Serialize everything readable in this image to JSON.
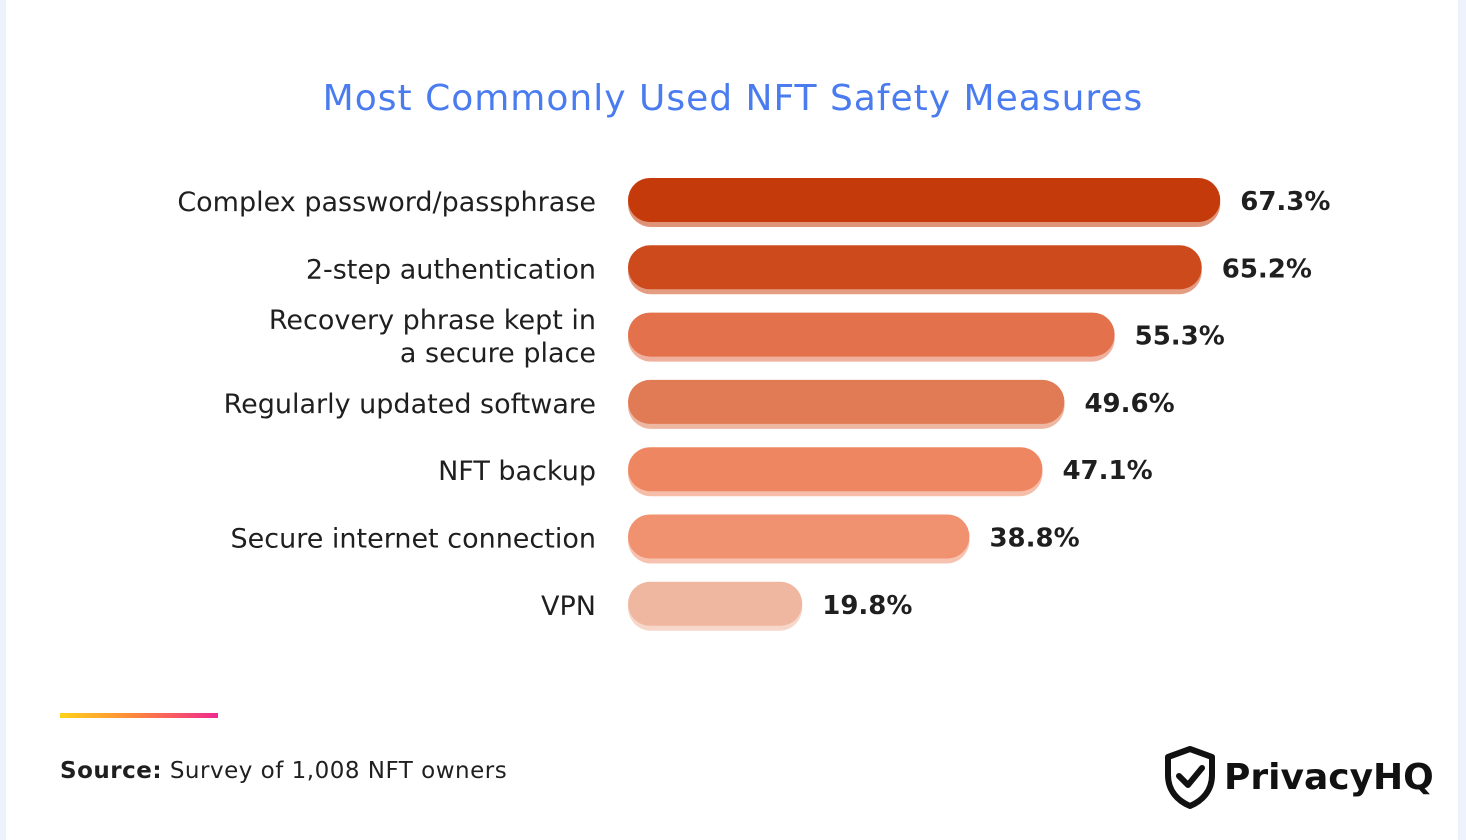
{
  "source": {
    "prefix": "Source:",
    "text": "Survey of 1,008 NFT owners"
  },
  "brand": {
    "name": "PrivacyHQ",
    "logo_icon": "shield-check-icon"
  },
  "colors": {
    "title": "#4a7cf0",
    "background": "#ffffff",
    "accent_gradient": [
      "#ffd21a",
      "#f0288f"
    ]
  },
  "chart_data": {
    "type": "bar",
    "orientation": "horizontal",
    "title": "Most Commonly Used NFT Safety Measures",
    "categories": [
      [
        "Complex password/passphrase"
      ],
      [
        "2-step authentication"
      ],
      [
        "Recovery phrase kept in",
        "a secure place"
      ],
      [
        "Regularly updated software"
      ],
      [
        "NFT backup"
      ],
      [
        "Secure internet connection"
      ],
      [
        "VPN"
      ]
    ],
    "values": [
      67.3,
      65.2,
      55.3,
      49.6,
      47.1,
      38.8,
      19.8
    ],
    "value_labels": [
      "67.3%",
      "65.2%",
      "55.3%",
      "49.6%",
      "47.1%",
      "38.8%",
      "19.8%"
    ],
    "bar_colors": [
      "#c43a0b",
      "#cd4a1d",
      "#e2714c",
      "#e07b55",
      "#ee8761",
      "#f0926f",
      "#efb79f"
    ],
    "grid": false,
    "legend": "none"
  }
}
